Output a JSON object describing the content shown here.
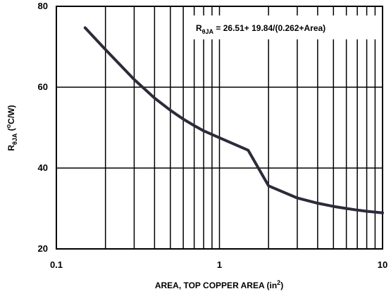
{
  "chart_data": {
    "type": "line",
    "xscale": "log",
    "xlim": [
      0.1,
      10
    ],
    "ylim": [
      20,
      80
    ],
    "xticks": [
      0.1,
      1,
      10
    ],
    "xtick_labels": [
      "0.1",
      "1",
      "10"
    ],
    "yticks": [
      20,
      40,
      60,
      80
    ],
    "ytick_labels": [
      "20",
      "40",
      "60",
      "80"
    ],
    "grid": true,
    "xlabel": {
      "main": "AREA, TOP COPPER AREA (in",
      "sup": "2",
      "end": ")"
    },
    "ylabel": {
      "r": "R",
      "sub": "θJA",
      "open": " (",
      "sup": "o",
      "rest": "C/W)"
    },
    "annotation": {
      "r": "R",
      "sub": "θJA",
      "text": " = 26.51+ 19.84/(0.262+Area)"
    },
    "series": [
      {
        "color": "#2e2a3a",
        "x": [
          0.15,
          0.2,
          0.3,
          0.4,
          0.5,
          0.6,
          0.7,
          0.8,
          1,
          1.5,
          2,
          3,
          4,
          5,
          6,
          7,
          8,
          10
        ],
        "y": [
          74.7,
          69.3,
          61.9,
          57.3,
          54.3,
          52.1,
          50.5,
          49.2,
          47.5,
          44.4,
          35.6,
          32.6,
          31.3,
          30.5,
          30.0,
          29.6,
          29.3,
          28.9
        ]
      }
    ]
  }
}
